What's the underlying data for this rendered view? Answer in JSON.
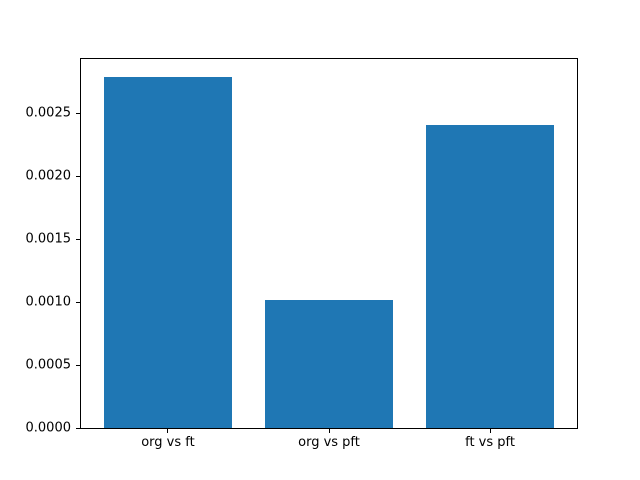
{
  "colors": {
    "background": "#ffffff",
    "spine": "#000000",
    "tick_text": "#000000"
  },
  "chart_data": {
    "type": "bar",
    "title": "",
    "xlabel": "",
    "ylabel": "",
    "categories": [
      "org vs ft",
      "org vs pft",
      "ft vs pft"
    ],
    "values": [
      0.00279,
      0.00102,
      0.00241
    ],
    "bar_color": "#1f77b4",
    "bar_width_fraction": 0.8,
    "xlim": [
      -0.54,
      2.54
    ],
    "ylim": [
      0,
      0.00293
    ],
    "yticks": [
      0.0,
      0.0005,
      0.001,
      0.0015,
      0.002,
      0.0025
    ],
    "ytick_labels": [
      "0.0000",
      "0.0005",
      "0.0010",
      "0.0015",
      "0.0020",
      "0.0025"
    ],
    "grid": false,
    "legend": "none"
  }
}
